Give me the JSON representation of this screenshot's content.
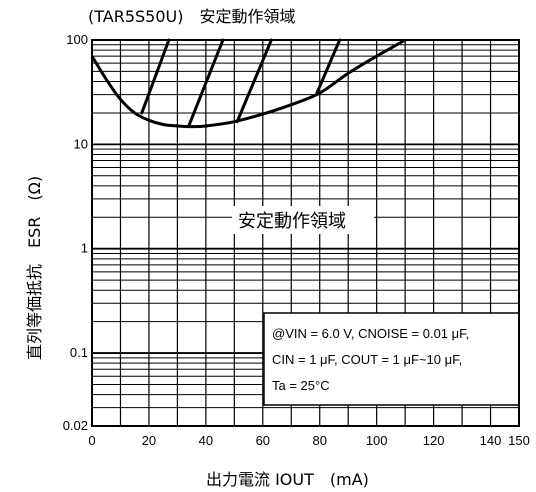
{
  "chart_data": {
    "type": "line",
    "title": "(TAR5S50U)　安定動作領域",
    "xlabel": "出力電流 IOUT　(mA)",
    "ylabel": "直列等価抵抗　ESR　(Ω)",
    "xscale": "linear",
    "yscale": "log",
    "xlim": [
      0,
      150
    ],
    "ylim": [
      0.02,
      100
    ],
    "x_ticks": [
      {
        "value": 0,
        "label": "0"
      },
      {
        "value": 20,
        "label": "20"
      },
      {
        "value": 40,
        "label": "40"
      },
      {
        "value": 60,
        "label": "60"
      },
      {
        "value": 80,
        "label": "80"
      },
      {
        "value": 100,
        "label": "100"
      },
      {
        "value": 120,
        "label": "120"
      },
      {
        "value": 140,
        "label": "140"
      },
      {
        "value": 150,
        "label": "150"
      }
    ],
    "y_ticks": [
      {
        "value": 100,
        "label": "100"
      },
      {
        "value": 10,
        "label": "10"
      },
      {
        "value": 1,
        "label": "1"
      },
      {
        "value": 0.1,
        "label": "0.1"
      },
      {
        "value": 0.02,
        "label": "0.02"
      }
    ],
    "grid": true,
    "region_label": "安定動作領域",
    "annotation": {
      "line1": "@VIN = 6.0 V, CNOISE = 0.01 μF,",
      "line2": "CIN = 1 μF, COUT = 1 μF~10 μF,",
      "line3": "Ta = 25°C"
    },
    "boundary": {
      "x": [
        0,
        5,
        10,
        15,
        20,
        25,
        30,
        35,
        40,
        50,
        60,
        70,
        80,
        90,
        100,
        110
      ],
      "y": [
        70,
        42,
        27,
        20,
        17,
        15.5,
        15,
        14.8,
        15,
        16.5,
        19.5,
        24,
        31,
        48,
        70,
        100
      ]
    },
    "hatch_lines": [
      {
        "x": [
          17.5,
          27
        ],
        "y": [
          20,
          100
        ]
      },
      {
        "x": [
          34,
          46
        ],
        "y": [
          15,
          100
        ]
      },
      {
        "x": [
          51,
          63
        ],
        "y": [
          16.5,
          100
        ]
      },
      {
        "x": [
          79,
          87
        ],
        "y": [
          31,
          100
        ]
      }
    ],
    "colors": {
      "line": "#000000",
      "grid": "#000000",
      "background": "#ffffff"
    }
  }
}
